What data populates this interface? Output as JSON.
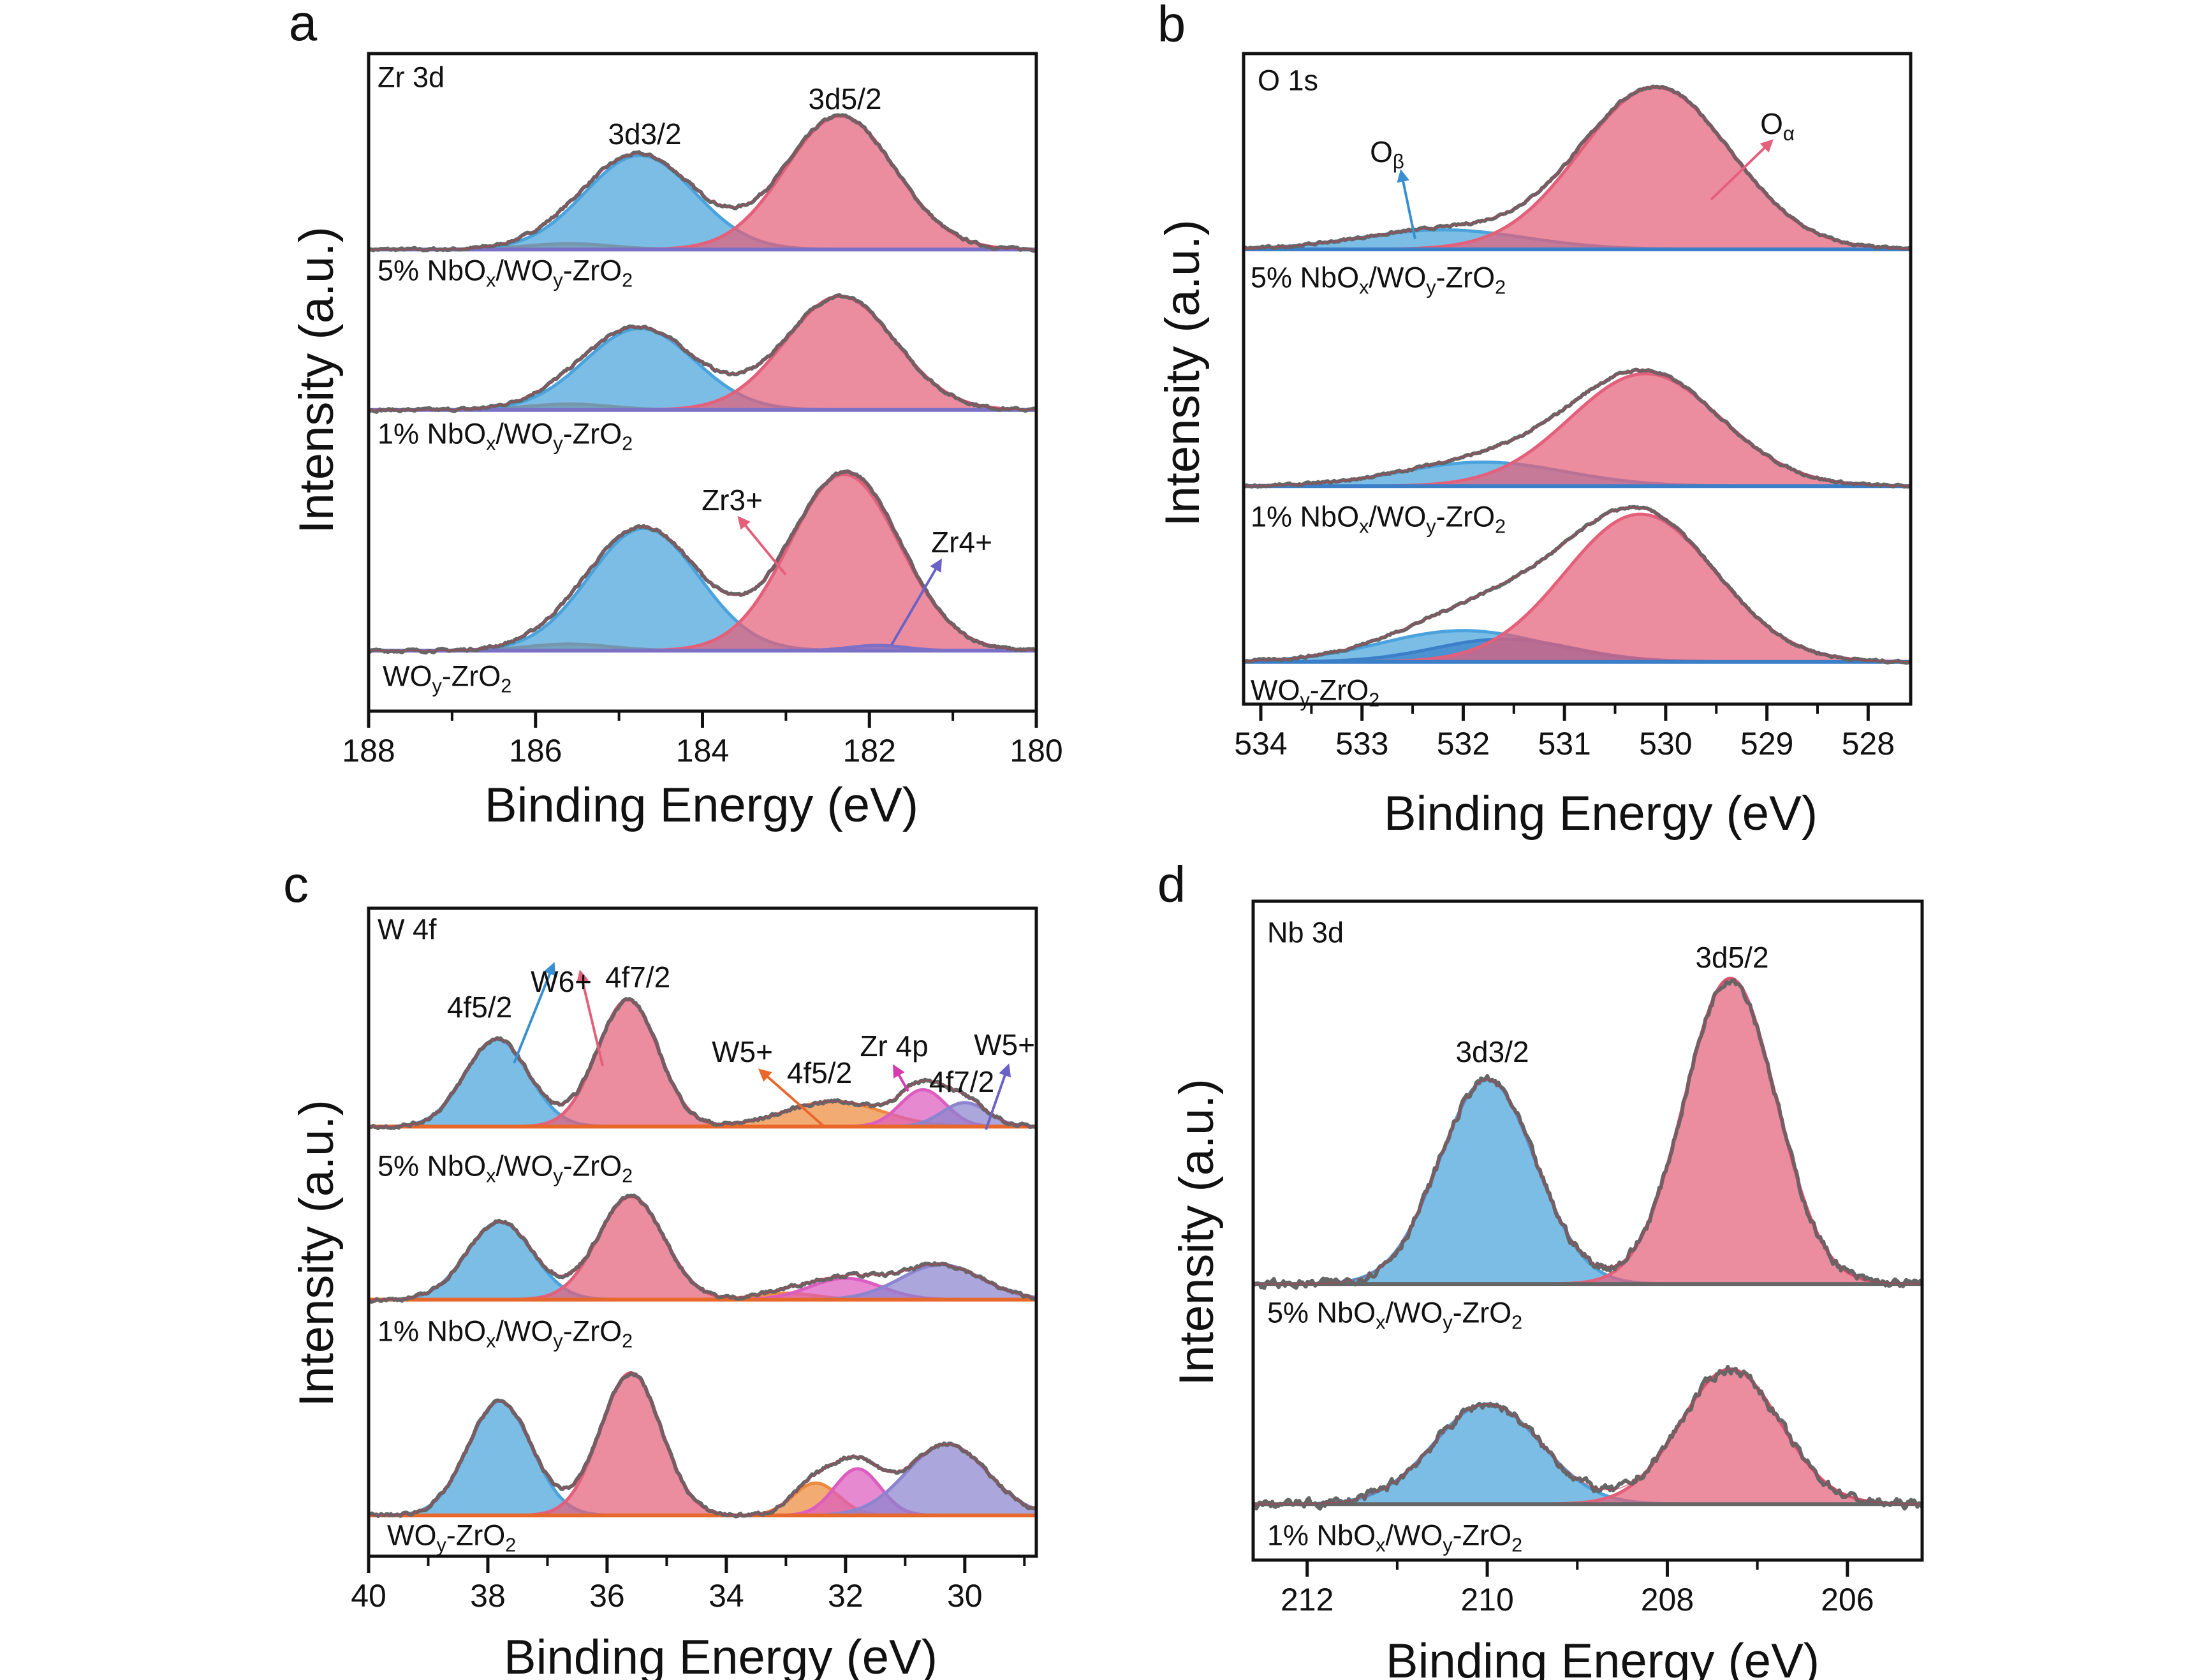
{
  "chart_data": [
    {
      "panel": "a",
      "type": "line",
      "title": "Zr 3d",
      "xlabel": "Binding Energy (eV)",
      "ylabel": "Intensity (a.u.)",
      "xlim": [
        188,
        180
      ],
      "x_ticks": [
        188,
        186,
        184,
        182,
        180
      ],
      "ylim": [
        0,
        100
      ],
      "grid": false,
      "baseline_color": "#7b6fc6",
      "measured_color": "#666666",
      "series": [
        {
          "name": "5% NbOx/WOy-ZrO2",
          "baseline": 70.2,
          "components": [
            {
              "center": 185.6,
              "fwhm": 1.2,
              "amplitude": 0.9,
              "color": "#e8782e"
            },
            {
              "center": 184.75,
              "fwhm": 1.55,
              "amplitude": 14.3,
              "color": "#4aa3dc"
            },
            {
              "center": 182.35,
              "fwhm": 1.55,
              "amplitude": 20.3,
              "color": "#e4607a"
            }
          ]
        },
        {
          "name": "1% NbOx/WOy-ZrO2",
          "baseline": 45.8,
          "components": [
            {
              "center": 185.6,
              "fwhm": 1.2,
              "amplitude": 0.9,
              "color": "#e8782e"
            },
            {
              "center": 184.75,
              "fwhm": 1.55,
              "amplitude": 12.4,
              "color": "#4aa3dc"
            },
            {
              "center": 182.35,
              "fwhm": 1.55,
              "amplitude": 17.3,
              "color": "#e4607a"
            }
          ]
        },
        {
          "name": "WOy-ZrO2",
          "baseline": 9.2,
          "components": [
            {
              "center": 185.6,
              "fwhm": 1.2,
              "amplitude": 1.0,
              "color": "#e8782e"
            },
            {
              "center": 184.7,
              "fwhm": 1.55,
              "amplitude": 18.6,
              "color": "#4aa3dc"
            },
            {
              "center": 182.3,
              "fwhm": 1.55,
              "amplitude": 26.8,
              "color": "#e4607a"
            },
            {
              "center": 181.9,
              "fwhm": 0.8,
              "amplitude": 0.8,
              "color": "#7b6fc6"
            }
          ]
        }
      ],
      "annotations": [
        "3d3/2",
        "3d5/2",
        "Zr3+",
        "Zr4+"
      ]
    },
    {
      "panel": "b",
      "type": "line",
      "title": "O 1s",
      "xlabel": "Binding Energy (eV)",
      "ylabel": "Intensity (a.u.)",
      "xlim": [
        534.17,
        527.58
      ],
      "x_ticks": [
        534,
        533,
        532,
        531,
        530,
        529,
        528
      ],
      "ylim": [
        0,
        100
      ],
      "grid": false,
      "baseline_color": "#3a7fc8",
      "measured_color": "#666666",
      "series": [
        {
          "name": "5% NbOx/WOy-ZrO2",
          "baseline": 69.9,
          "components": [
            {
              "center": 532.2,
              "fwhm": 1.9,
              "amplitude": 3.0,
              "color": "#4aa3dc"
            },
            {
              "center": 530.1,
              "fwhm": 1.75,
              "amplitude": 24.9,
              "color": "#e4607a"
            }
          ]
        },
        {
          "name": "1% NbOx/WOy-ZrO2",
          "baseline": 33.5,
          "components": [
            {
              "center": 531.8,
              "fwhm": 1.9,
              "amplitude": 3.7,
              "color": "#4aa3dc"
            },
            {
              "center": 530.2,
              "fwhm": 1.75,
              "amplitude": 17.3,
              "color": "#e4607a"
            }
          ]
        },
        {
          "name": "WOy-ZrO2",
          "baseline": 6.5,
          "components": [
            {
              "center": 532.0,
              "fwhm": 1.9,
              "amplitude": 4.8,
              "color": "#4aa3dc"
            },
            {
              "center": 531.6,
              "fwhm": 1.6,
              "amplitude": 3.5,
              "color": "#3a7fc8"
            },
            {
              "center": 530.25,
              "fwhm": 1.75,
              "amplitude": 22.7,
              "color": "#e4607a"
            }
          ]
        }
      ],
      "annotations": [
        "Oβ",
        "Oα"
      ]
    },
    {
      "panel": "c",
      "type": "line",
      "title": "W 4f",
      "xlabel": "Binding Energy (eV)",
      "ylabel": "Intensity (a.u.)",
      "xlim": [
        40,
        28.8
      ],
      "x_ticks": [
        40,
        38,
        36,
        34,
        32,
        30
      ],
      "ylim": [
        0,
        100
      ],
      "grid": false,
      "baseline_color": "#e8672a",
      "measured_color": "#666666",
      "series": [
        {
          "name": "5% NbOx/WOy-ZrO2",
          "baseline": 66.3,
          "components": [
            {
              "center": 37.85,
              "fwhm": 1.25,
              "amplitude": 13.5,
              "color": "#4aa3dc"
            },
            {
              "center": 35.65,
              "fwhm": 1.2,
              "amplitude": 19.6,
              "color": "#e4607a"
            },
            {
              "center": 32.2,
              "fwhm": 1.9,
              "amplitude": 3.9,
              "color": "#ee8a3e"
            },
            {
              "center": 30.7,
              "fwhm": 0.9,
              "amplitude": 5.7,
              "color": "#dd5cbf"
            },
            {
              "center": 30.0,
              "fwhm": 0.9,
              "amplitude": 3.7,
              "color": "#8b84cf"
            }
          ]
        },
        {
          "name": "1% NbOx/WOy-ZrO2",
          "baseline": 39.6,
          "components": [
            {
              "center": 37.8,
              "fwhm": 1.3,
              "amplitude": 12.0,
              "color": "#4aa3dc"
            },
            {
              "center": 35.6,
              "fwhm": 1.3,
              "amplitude": 15.9,
              "color": "#e4607a"
            },
            {
              "center": 33.0,
              "fwhm": 1.2,
              "amplitude": 1.0,
              "color": "#ee8a3e"
            },
            {
              "center": 32.0,
              "fwhm": 1.4,
              "amplitude": 3.3,
              "color": "#dd5cbf"
            },
            {
              "center": 30.4,
              "fwhm": 1.6,
              "amplitude": 5.4,
              "color": "#8b84cf"
            }
          ]
        },
        {
          "name": "WOy-ZrO2",
          "baseline": 6.3,
          "components": [
            {
              "center": 37.8,
              "fwhm": 1.25,
              "amplitude": 17.6,
              "color": "#4aa3dc"
            },
            {
              "center": 35.6,
              "fwhm": 1.2,
              "amplitude": 22.0,
              "color": "#e4607a"
            },
            {
              "center": 32.5,
              "fwhm": 0.9,
              "amplitude": 5.0,
              "color": "#ee8a3e"
            },
            {
              "center": 31.8,
              "fwhm": 0.9,
              "amplitude": 7.2,
              "color": "#dd5cbf"
            },
            {
              "center": 30.3,
              "fwhm": 1.6,
              "amplitude": 11.0,
              "color": "#8b84cf"
            }
          ]
        }
      ],
      "annotations": [
        "4f5/2",
        "W6+",
        "4f7/2",
        "W5+",
        "4f5/2",
        "Zr 4p",
        "4f7/2",
        "W5+"
      ]
    },
    {
      "panel": "d",
      "type": "line",
      "title": "Nb 3d",
      "xlabel": "Binding Energy (eV)",
      "ylabel": "Intensity (a.u.)",
      "xlim": [
        212.6,
        205.17
      ],
      "x_ticks": [
        212,
        210,
        208,
        206
      ],
      "ylim": [
        0,
        100
      ],
      "grid": false,
      "baseline_color": "#666666",
      "measured_color": "#666666",
      "series": [
        {
          "name": "5% NbOx/WOy-ZrO2",
          "baseline": 41.9,
          "components": [
            {
              "center": 210.0,
              "fwhm": 1.25,
              "amplitude": 31.0,
              "color": "#4aa3dc"
            },
            {
              "center": 207.3,
              "fwhm": 1.2,
              "amplitude": 46.4,
              "color": "#e4607a"
            }
          ]
        },
        {
          "name": "1% NbOx/WOy-ZrO2",
          "baseline": 8.5,
          "components": [
            {
              "center": 210.0,
              "fwhm": 1.4,
              "amplitude": 15.2,
              "color": "#4aa3dc"
            },
            {
              "center": 207.3,
              "fwhm": 1.3,
              "amplitude": 20.5,
              "color": "#e4607a"
            }
          ]
        }
      ],
      "annotations": [
        "3d3/2",
        "3d5/2"
      ]
    }
  ]
}
